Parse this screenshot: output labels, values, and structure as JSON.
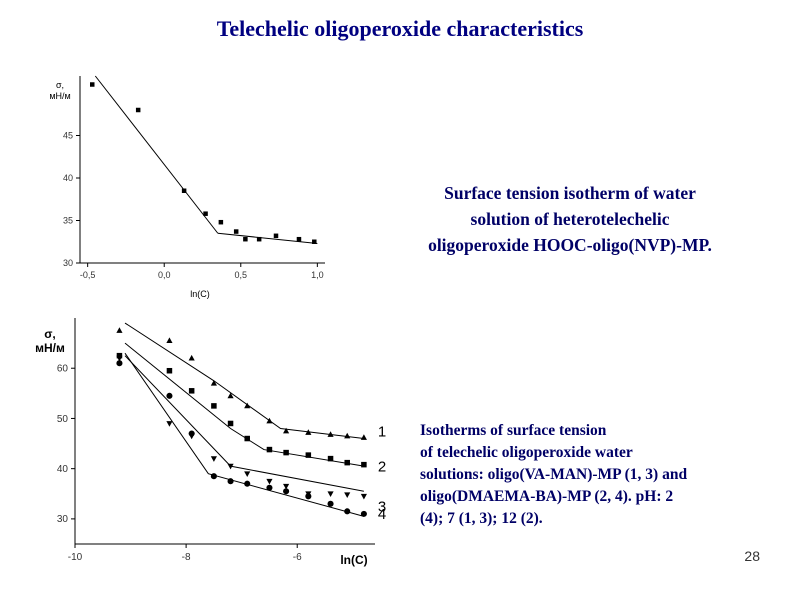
{
  "slide": {
    "title": "Telechelic oligoperoxide characteristics",
    "page_number": "28"
  },
  "captions": {
    "first": [
      "Surface tension isotherm of water",
      "solution of  heterotelechelic",
      "oligoperoxide HOOC-oligo(NVP)-MP."
    ],
    "second": [
      "Isotherms  of surface tension",
      "of telechelic oligoperoxide  water",
      "solutions:  oligo(VA-MAN)-MP  (1, 3) and",
      "oligo(DMAEMA-BA)-MP  (2, 4). pH:  2",
      "(4); 7 (1, 3); 12 (2)."
    ]
  },
  "chart_data": [
    {
      "type": "scatter",
      "xlabel": "ln(C)",
      "ylabel": "σ, мН/м",
      "xlim": [
        -0.55,
        1.05
      ],
      "ylim": [
        30,
        52
      ],
      "xticks": [
        "-0,5",
        "0,0",
        "0,5",
        "1,0"
      ],
      "xtick_values": [
        -0.5,
        0.0,
        0.5,
        1.0
      ],
      "yticks": [
        "30",
        "35",
        "40",
        "45"
      ],
      "ytick_values": [
        30,
        35,
        40,
        45
      ],
      "grid": false,
      "series": [
        {
          "marker": "square",
          "color": "#000000",
          "x": [
            -0.47,
            -0.17,
            0.13,
            0.27,
            0.37,
            0.47,
            0.53,
            0.62,
            0.73,
            0.88,
            0.98
          ],
          "y": [
            51.0,
            48.0,
            38.5,
            35.8,
            34.8,
            33.7,
            32.8,
            32.8,
            33.2,
            32.8,
            32.5
          ]
        }
      ],
      "fit_lines": [
        {
          "x": [
            -0.45,
            0.35
          ],
          "y": [
            52.0,
            33.5
          ]
        },
        {
          "x": [
            0.35,
            1.0
          ],
          "y": [
            33.5,
            32.3
          ]
        }
      ]
    },
    {
      "type": "scatter",
      "xlabel": "ln(C)",
      "ylabel": "σ, мН/м",
      "xlim": [
        -10,
        -4.6
      ],
      "ylim": [
        25,
        70
      ],
      "xticks": [
        "-10",
        "-8",
        "-6"
      ],
      "xtick_values": [
        -10,
        -8,
        -6
      ],
      "yticks": [
        "30",
        "40",
        "50",
        "60"
      ],
      "ytick_values": [
        30,
        40,
        50,
        60
      ],
      "grid": false,
      "series": [
        {
          "name": "1",
          "marker": "triangle-up",
          "x": [
            -9.2,
            -8.3,
            -7.9,
            -7.5,
            -7.2,
            -6.9,
            -6.5,
            -6.2,
            -5.8,
            -5.4,
            -5.1,
            -4.8
          ],
          "y": [
            67.5,
            65.5,
            62.0,
            57.0,
            54.5,
            52.5,
            49.5,
            47.5,
            47.2,
            46.8,
            46.5,
            46.2
          ]
        },
        {
          "name": "2",
          "marker": "square",
          "x": [
            -9.2,
            -8.3,
            -7.9,
            -7.5,
            -7.2,
            -6.9,
            -6.5,
            -6.2,
            -5.8,
            -5.4,
            -5.1,
            -4.8
          ],
          "y": [
            62.5,
            59.5,
            55.5,
            52.5,
            49.0,
            46.0,
            43.8,
            43.2,
            42.7,
            42.0,
            41.2,
            40.8
          ]
        },
        {
          "name": "3",
          "marker": "triangle-down",
          "x": [
            -9.2,
            -8.3,
            -7.9,
            -7.5,
            -7.2,
            -6.9,
            -6.5,
            -6.2,
            -5.8,
            -5.4,
            -5.1,
            -4.8
          ],
          "y": [
            62.0,
            49.0,
            46.5,
            42.0,
            40.5,
            39.0,
            37.5,
            36.5,
            35.0,
            35.0,
            34.8,
            34.5
          ]
        },
        {
          "name": "4",
          "marker": "circle",
          "x": [
            -9.2,
            -8.3,
            -7.9,
            -7.5,
            -7.2,
            -6.9,
            -6.5,
            -6.2,
            -5.8,
            -5.4,
            -5.1,
            -4.8
          ],
          "y": [
            61.0,
            54.5,
            47.0,
            38.5,
            37.5,
            37.0,
            36.2,
            35.5,
            34.5,
            33.0,
            31.5,
            31.0
          ]
        }
      ],
      "fit_lines": [
        {
          "x": [
            -9.1,
            -7.5,
            -6.3,
            -4.8
          ],
          "y": [
            69.0,
            57.5,
            48.0,
            46.0
          ]
        },
        {
          "x": [
            -9.1,
            -7.2,
            -6.6,
            -4.8
          ],
          "y": [
            65.0,
            48.0,
            43.8,
            40.5
          ]
        },
        {
          "x": [
            -9.1,
            -7.2,
            -4.8
          ],
          "y": [
            62.5,
            40.5,
            35.5
          ]
        },
        {
          "x": [
            -9.1,
            -7.6,
            -4.8
          ],
          "y": [
            63.0,
            39.0,
            30.5
          ]
        }
      ]
    }
  ]
}
